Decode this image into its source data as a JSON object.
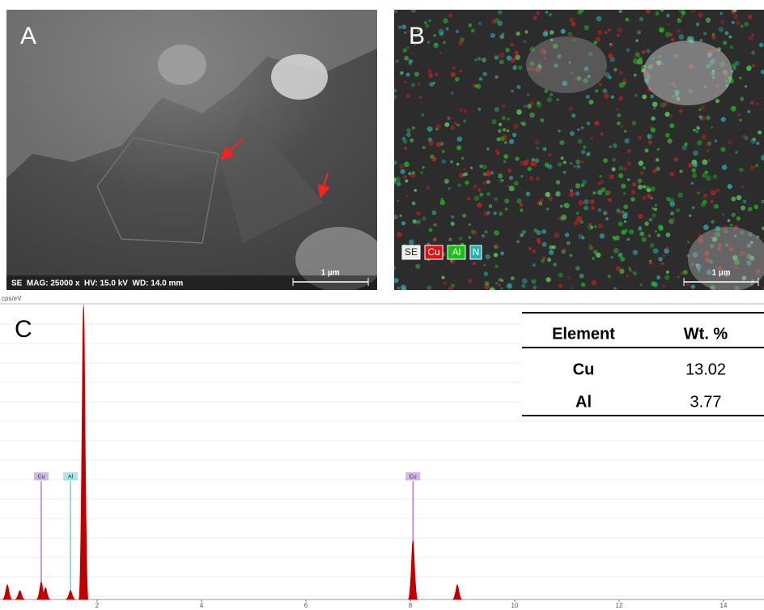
{
  "panels": {
    "a": {
      "label": "A",
      "info": "SE  MAG: 25000 x  HV: 15.0 kV  WD: 14.0 mm",
      "scale_bar": "1 µm"
    },
    "b": {
      "label": "B",
      "legend": [
        {
          "name": "SE",
          "color": "#ffffff"
        },
        {
          "name": "Cu",
          "color": "#e01010"
        },
        {
          "name": "Al",
          "color": "#18c018"
        },
        {
          "name": "N",
          "color": "#20b0b0"
        }
      ],
      "scale_bar": "1 µm"
    },
    "c": {
      "label": "C"
    }
  },
  "chart_data": {
    "type": "spectrum",
    "y_label": "cps/eV",
    "color": "#c00000",
    "xlim": [
      0.15,
      14.8
    ],
    "xticks": [
      2,
      4,
      6,
      8,
      10,
      12,
      14
    ],
    "ylim": [
      0,
      100
    ],
    "peaks": {
      "x": [
        0.28,
        0.52,
        0.93,
        1.01,
        1.49,
        1.74,
        8.05,
        8.9
      ],
      "values": [
        5,
        3,
        6,
        4,
        3,
        100,
        20,
        5
      ]
    },
    "markers": [
      {
        "label": "Cu",
        "x": 0.93,
        "color": "#9b5fd6"
      },
      {
        "label": "Al",
        "x": 1.49,
        "color": "#40c8d8"
      },
      {
        "label": "Cu",
        "x": 8.05,
        "color": "#9b5fd6"
      }
    ]
  },
  "table": {
    "header": [
      "Element",
      "Wt. %"
    ],
    "rows": [
      [
        "Cu",
        13.02
      ],
      [
        "Al",
        3.77
      ]
    ]
  }
}
